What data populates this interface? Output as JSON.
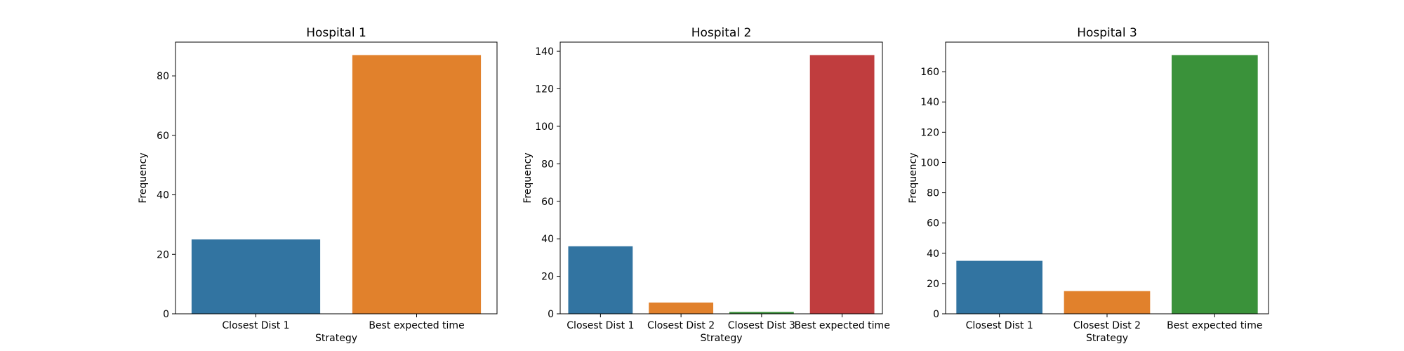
{
  "chart_data": [
    {
      "type": "bar",
      "title": "Hospital 1",
      "xlabel": "Strategy",
      "ylabel": "Frequency",
      "categories": [
        "Closest Dist 1",
        "Best expected time"
      ],
      "values": [
        25,
        87
      ],
      "colors": [
        "#3274a1",
        "#e1812c"
      ],
      "ylim": [
        0,
        91.35
      ],
      "yticks": [
        0,
        20,
        40,
        60,
        80
      ],
      "grid": false
    },
    {
      "type": "bar",
      "title": "Hospital 2",
      "xlabel": "Strategy",
      "ylabel": "Frequency",
      "categories": [
        "Closest Dist 1",
        "Closest Dist 2",
        "Closest Dist 3",
        "Best expected time"
      ],
      "values": [
        36,
        6,
        1,
        138
      ],
      "colors": [
        "#3274a1",
        "#e1812c",
        "#3a923a",
        "#c03d3e"
      ],
      "ylim": [
        0,
        144.9
      ],
      "yticks": [
        0,
        20,
        40,
        60,
        80,
        100,
        120,
        140
      ],
      "grid": false
    },
    {
      "type": "bar",
      "title": "Hospital 3",
      "xlabel": "Strategy",
      "ylabel": "Frequency",
      "categories": [
        "Closest Dist 1",
        "Closest Dist 2",
        "Best expected time"
      ],
      "values": [
        35,
        15,
        171
      ],
      "colors": [
        "#3274a1",
        "#e1812c",
        "#3a923a"
      ],
      "ylim": [
        0,
        179.55
      ],
      "yticks": [
        0,
        20,
        40,
        60,
        80,
        100,
        120,
        140,
        160
      ],
      "grid": false
    }
  ]
}
